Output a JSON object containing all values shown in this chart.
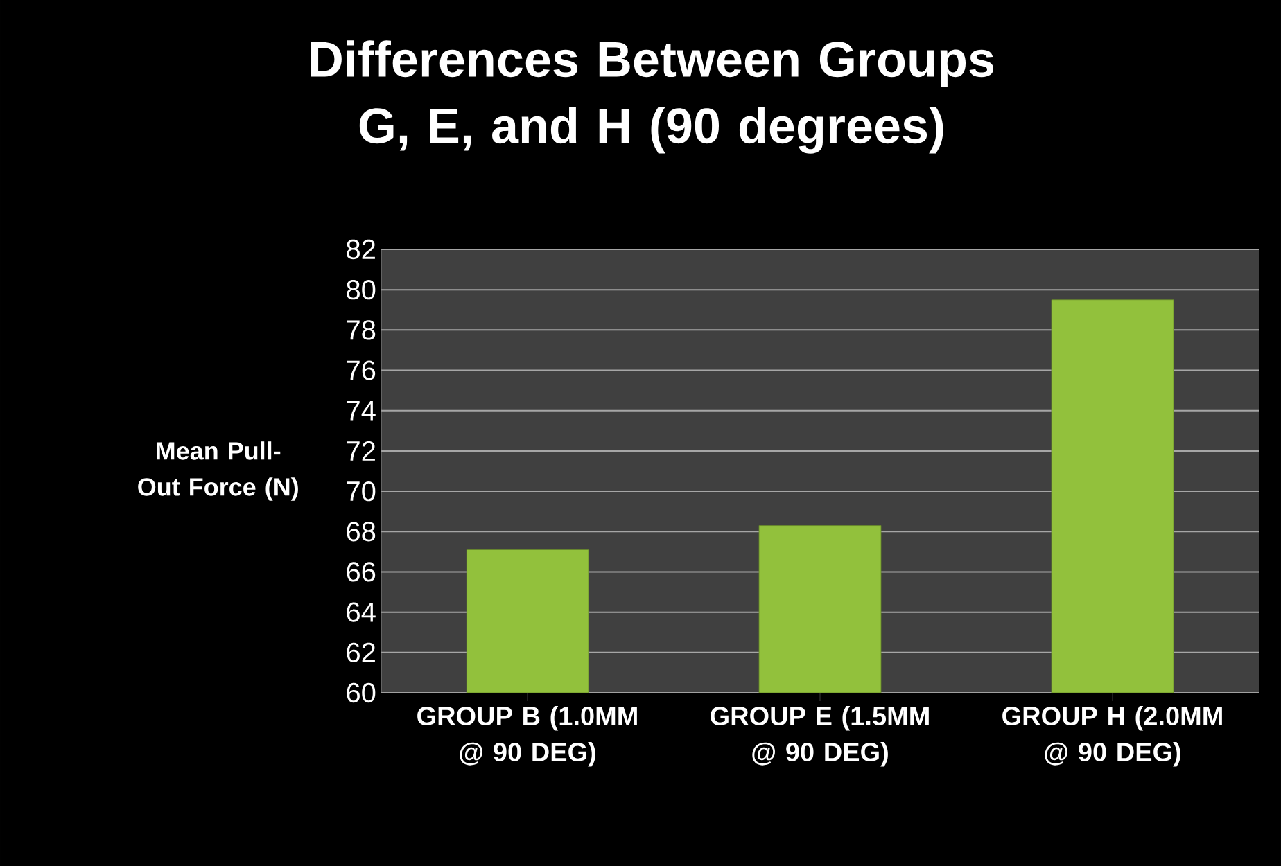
{
  "chart_data": {
    "type": "bar",
    "title": "Differences Between Groups G, E, and H (90 degrees)",
    "ylabel": "Mean Pull-Out Force (N)",
    "categories": [
      "GROUP B (1.0MM @ 90 DEG)",
      "GROUP E (1.5MM @ 90 DEG)",
      "GROUP H (2.0MM @ 90 DEG)"
    ],
    "values": [
      67.1,
      68.3,
      79.5
    ],
    "color": "#92c13c",
    "ylim": [
      60,
      82
    ],
    "yticks": [
      60,
      62,
      64,
      66,
      68,
      70,
      72,
      74,
      76,
      78,
      80,
      82
    ],
    "grid": "y"
  }
}
